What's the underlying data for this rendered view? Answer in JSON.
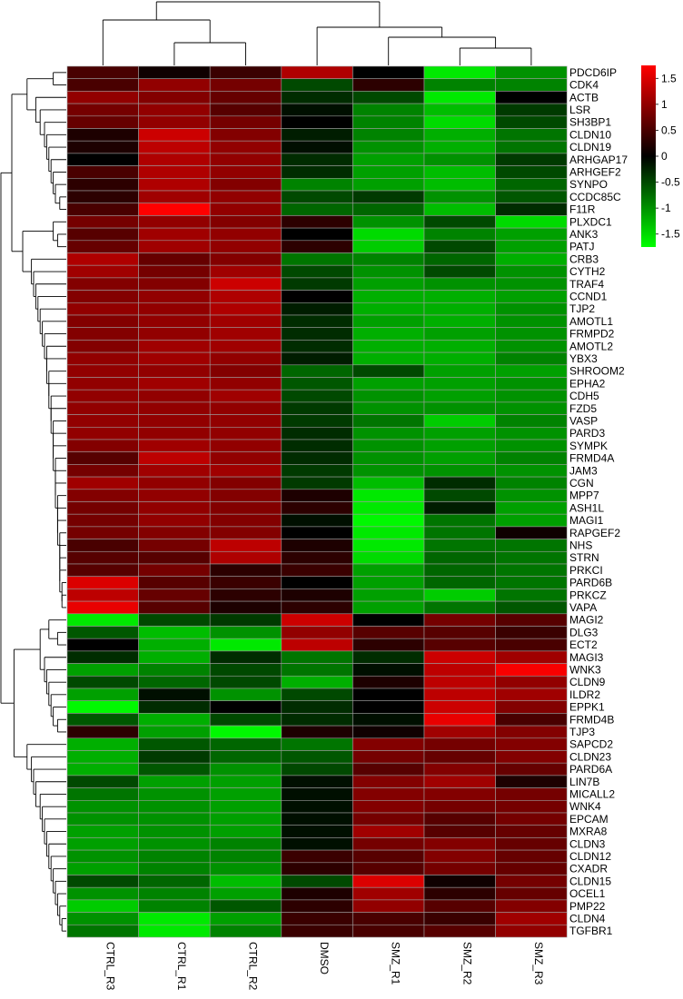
{
  "chart_data": {
    "type": "heatmap",
    "columns": [
      "CTRL_R3",
      "CTRL_R1",
      "CTRL_R2",
      "DMSO",
      "SMZ_R1",
      "SMZ_R2",
      "SMZ_R3"
    ],
    "rows": [
      "PDCD6IP",
      "CDK4",
      "ACTB",
      "LSR",
      "SH3BP1",
      "CLDN10",
      "CLDN19",
      "ARHGAP17",
      "ARHGEF2",
      "SYNPO",
      "CCDC85C",
      "F11R",
      "PLXDC1",
      "ANK3",
      "PATJ",
      "CRB3",
      "CYTH2",
      "TRAF4",
      "CCND1",
      "TJP2",
      "AMOTL1",
      "FRMPD2",
      "AMOTL2",
      "YBX3",
      "SHROOM2",
      "EPHA2",
      "CDH5",
      "FZD5",
      "VASP",
      "PARD3",
      "SYMPK",
      "FRMD4A",
      "JAM3",
      "CGN",
      "MPP7",
      "ASH1L",
      "MAGI1",
      "RAPGEF2",
      "NHS",
      "STRN",
      "PRKCI",
      "PARD6B",
      "PRKCZ",
      "VAPA",
      "MAGI2",
      "DLG3",
      "ECT2",
      "MAGI3",
      "WNK3",
      "CLDN9",
      "ILDR2",
      "EPPK1",
      "FRMD4B",
      "TJP3",
      "SAPCD2",
      "CLDN23",
      "PARD6A",
      "LIN7B",
      "MICALL2",
      "WNK4",
      "EPCAM",
      "MXRA8",
      "CLDN3",
      "CLDN12",
      "CXADR",
      "CLDN15",
      "OCEL1",
      "PMP22",
      "CLDN4",
      "TGFBR1"
    ],
    "values": [
      [
        0.5,
        0.1,
        0.4,
        1.2,
        0.0,
        -1.6,
        -1.0
      ],
      [
        0.5,
        1.0,
        0.8,
        -0.5,
        0.3,
        -0.9,
        -0.9
      ],
      [
        1.0,
        0.9,
        0.7,
        -0.3,
        -0.5,
        -1.6,
        0.0
      ],
      [
        0.8,
        1.0,
        0.6,
        -0.1,
        -0.9,
        -1.3,
        -0.4
      ],
      [
        0.7,
        1.0,
        0.8,
        0.0,
        -0.9,
        -1.5,
        -0.5
      ],
      [
        0.2,
        1.4,
        0.9,
        -0.2,
        -0.9,
        -1.2,
        -0.8
      ],
      [
        0.2,
        1.3,
        1.0,
        -0.1,
        -1.0,
        -1.2,
        -0.8
      ],
      [
        0.0,
        1.2,
        1.0,
        -0.3,
        -1.1,
        -1.0,
        -0.4
      ],
      [
        0.5,
        1.2,
        1.0,
        -0.3,
        -1.1,
        -1.3,
        -0.5
      ],
      [
        0.3,
        1.2,
        0.9,
        -0.9,
        -1.1,
        -1.3,
        -0.7
      ],
      [
        0.3,
        1.1,
        1.0,
        -0.5,
        -0.4,
        -1.0,
        -0.6
      ],
      [
        0.5,
        1.8,
        1.0,
        -0.7,
        -0.7,
        -1.3,
        -0.3
      ],
      [
        0.8,
        1.0,
        0.9,
        0.3,
        -1.0,
        -0.5,
        -1.5
      ],
      [
        0.6,
        1.1,
        1.0,
        0.0,
        -1.5,
        -0.9,
        -1.1
      ],
      [
        0.7,
        1.1,
        1.0,
        0.3,
        -1.4,
        -0.5,
        -1.1
      ],
      [
        1.2,
        0.7,
        0.9,
        -0.8,
        -0.9,
        -0.7,
        -1.2
      ],
      [
        1.1,
        0.8,
        1.1,
        -0.5,
        -1.0,
        -0.5,
        -1.0
      ],
      [
        0.9,
        0.9,
        1.4,
        -0.4,
        -1.1,
        -1.0,
        -1.0
      ],
      [
        0.9,
        1.0,
        1.2,
        0.0,
        -1.2,
        -1.2,
        -1.1
      ],
      [
        1.0,
        1.0,
        1.2,
        -0.2,
        -1.2,
        -1.2,
        -1.0
      ],
      [
        0.9,
        1.0,
        1.1,
        -0.3,
        -1.1,
        -1.2,
        -1.0
      ],
      [
        0.9,
        1.0,
        1.1,
        -0.3,
        -1.2,
        -1.1,
        -1.0
      ],
      [
        0.9,
        1.1,
        1.1,
        -0.3,
        -1.2,
        -1.2,
        -1.0
      ],
      [
        1.0,
        1.1,
        1.0,
        -0.2,
        -1.2,
        -1.2,
        -0.9
      ],
      [
        1.0,
        1.0,
        0.9,
        -0.7,
        -0.5,
        -1.1,
        -1.1
      ],
      [
        1.0,
        1.1,
        1.0,
        -0.6,
        -1.1,
        -1.1,
        -1.0
      ],
      [
        1.0,
        1.0,
        1.1,
        -0.5,
        -1.0,
        -1.1,
        -1.0
      ],
      [
        1.0,
        1.0,
        1.0,
        -0.4,
        -1.0,
        -1.0,
        -1.0
      ],
      [
        1.0,
        1.0,
        1.0,
        -0.4,
        -0.8,
        -1.4,
        -0.9
      ],
      [
        1.0,
        1.0,
        1.0,
        -0.3,
        -1.0,
        -1.1,
        -1.0
      ],
      [
        0.9,
        1.1,
        1.0,
        -0.3,
        -1.0,
        -1.1,
        -1.0
      ],
      [
        0.6,
        1.3,
        1.0,
        -0.3,
        -1.0,
        -1.1,
        -0.9
      ],
      [
        0.8,
        1.1,
        1.1,
        -0.4,
        -1.0,
        -1.0,
        -1.0
      ],
      [
        1.1,
        1.0,
        0.9,
        -0.4,
        -1.3,
        -0.3,
        -0.9
      ],
      [
        0.9,
        1.0,
        0.9,
        0.2,
        -1.6,
        -0.5,
        -1.0
      ],
      [
        0.8,
        1.0,
        0.9,
        0.3,
        -1.6,
        -0.2,
        -1.1
      ],
      [
        0.8,
        1.0,
        0.9,
        -0.1,
        -1.7,
        -0.8,
        -1.1
      ],
      [
        0.8,
        0.9,
        0.9,
        0.0,
        -1.6,
        -0.8,
        0.1
      ],
      [
        0.5,
        0.8,
        1.3,
        0.2,
        -1.6,
        -0.8,
        -0.8
      ],
      [
        0.6,
        0.6,
        1.2,
        0.3,
        -1.5,
        -0.7,
        -0.8
      ],
      [
        0.6,
        0.8,
        0.3,
        0.4,
        -1.1,
        -0.7,
        -0.8
      ],
      [
        1.5,
        0.6,
        0.4,
        0.0,
        -1.1,
        -0.7,
        -0.8
      ],
      [
        1.3,
        0.7,
        0.3,
        0.2,
        -1.1,
        -1.4,
        -0.8
      ],
      [
        1.6,
        0.6,
        0.2,
        0.3,
        -1.1,
        -0.8,
        -0.6
      ],
      [
        -1.6,
        -0.5,
        -0.4,
        1.4,
        0.0,
        0.8,
        0.6
      ],
      [
        -0.6,
        -1.3,
        -1.0,
        1.0,
        0.6,
        0.6,
        0.4
      ],
      [
        0.0,
        -1.2,
        -1.6,
        1.3,
        0.3,
        0.6,
        0.5
      ],
      [
        -0.3,
        -1.2,
        -0.3,
        -0.8,
        -0.3,
        1.4,
        1.1
      ],
      [
        -1.1,
        -0.9,
        -0.5,
        -0.8,
        -0.1,
        1.3,
        1.7
      ],
      [
        -0.5,
        -0.7,
        -0.5,
        -1.2,
        0.2,
        1.3,
        1.0
      ],
      [
        -1.1,
        -0.1,
        -1.0,
        -0.5,
        0.0,
        1.3,
        1.1
      ],
      [
        -1.7,
        -0.3,
        0.0,
        -0.3,
        0.0,
        1.4,
        0.9
      ],
      [
        -0.6,
        -1.2,
        -0.5,
        -0.3,
        -0.1,
        1.6,
        0.5
      ],
      [
        0.3,
        -1.1,
        -1.7,
        0.2,
        0.1,
        1.1,
        0.9
      ],
      [
        -1.2,
        -0.6,
        -0.7,
        -0.8,
        0.9,
        0.8,
        0.9
      ],
      [
        -1.2,
        -0.4,
        -0.7,
        -0.6,
        0.8,
        0.7,
        0.9
      ],
      [
        -1.2,
        -0.6,
        -1.0,
        -0.5,
        0.6,
        0.9,
        0.7
      ],
      [
        -0.5,
        -1.1,
        -1.1,
        -0.1,
        0.9,
        1.1,
        0.2
      ],
      [
        -0.8,
        -1.0,
        -1.1,
        -0.1,
        0.9,
        0.9,
        0.8
      ],
      [
        -1.0,
        -1.0,
        -1.1,
        -0.1,
        0.9,
        0.8,
        0.8
      ],
      [
        -1.0,
        -1.0,
        -1.1,
        -0.1,
        0.8,
        0.6,
        0.8
      ],
      [
        -1.1,
        -1.0,
        -1.1,
        -0.1,
        1.1,
        0.6,
        0.7
      ],
      [
        -1.1,
        -1.0,
        -0.9,
        -0.1,
        0.8,
        0.9,
        0.7
      ],
      [
        -1.0,
        -0.9,
        -0.9,
        0.4,
        0.6,
        0.9,
        0.7
      ],
      [
        -1.1,
        -0.9,
        -1.0,
        0.3,
        0.6,
        0.8,
        0.7
      ],
      [
        -0.5,
        -0.7,
        -1.3,
        -0.5,
        1.5,
        0.1,
        0.8
      ],
      [
        -1.0,
        -0.9,
        -1.1,
        0.2,
        1.1,
        0.3,
        0.7
      ],
      [
        -1.4,
        -0.9,
        -0.6,
        0.3,
        1.0,
        0.6,
        0.9
      ],
      [
        -1.0,
        -1.6,
        -1.1,
        0.4,
        0.5,
        0.4,
        1.1
      ],
      [
        -0.8,
        -1.6,
        -0.9,
        0.4,
        0.5,
        0.6,
        1.0
      ]
    ],
    "colorbar": {
      "ticks": [
        1.5,
        1,
        0.5,
        0,
        -0.5,
        -1,
        -1.5
      ],
      "range": [
        -1.75,
        1.75
      ]
    },
    "colors": {
      "high": "#ff0000",
      "mid": "#000000",
      "low": "#00ff00",
      "cell_border": "#9e9e9e",
      "dendrogram": "#000000"
    }
  }
}
